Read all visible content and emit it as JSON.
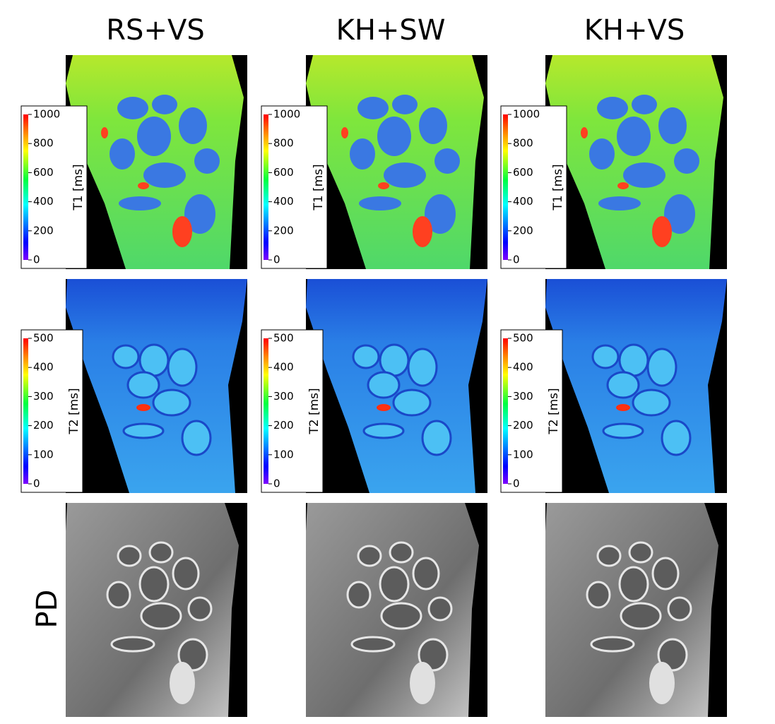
{
  "columns": [
    "RS+VS",
    "KH+SW",
    "KH+VS"
  ],
  "rows": [
    {
      "colorbar": {
        "label": "T1 [ms]",
        "ticks": [
          0,
          200,
          400,
          600,
          800,
          1000
        ]
      }
    },
    {
      "colorbar": {
        "label": "T2 [ms]",
        "ticks": [
          0,
          100,
          200,
          300,
          400,
          500
        ]
      }
    },
    {
      "label": "PD"
    }
  ]
}
